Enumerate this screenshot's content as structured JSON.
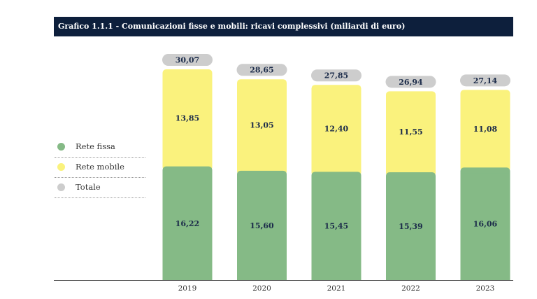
{
  "title": "Grafico 1.1.1 - Comunicazioni fisse e mobili: ricavi complessivi (miliardi di euro)",
  "colors": {
    "rete_fissa": "#85ba86",
    "rete_mobile": "#faf27d",
    "totale": "#cdcdcd",
    "title_bg": "#0d1f3c"
  },
  "legend": [
    {
      "label": "Rete fissa",
      "color": "#85ba86"
    },
    {
      "label": "Rete mobile",
      "color": "#faf27d"
    },
    {
      "label": "Totale",
      "color": "#cdcdcd"
    }
  ],
  "chart_data": {
    "type": "bar",
    "stacked": true,
    "categories": [
      "2019",
      "2020",
      "2021",
      "2022",
      "2023"
    ],
    "series": [
      {
        "name": "Rete fissa",
        "values": [
          16.22,
          15.6,
          15.45,
          15.39,
          16.06
        ],
        "labels": [
          "16,22",
          "15,60",
          "15,45",
          "15,39",
          "16,06"
        ]
      },
      {
        "name": "Rete mobile",
        "values": [
          13.85,
          13.05,
          12.4,
          11.55,
          11.08
        ],
        "labels": [
          "13,85",
          "13,05",
          "12,40",
          "11,55",
          "11,08"
        ]
      }
    ],
    "totals": {
      "name": "Totale",
      "values": [
        30.07,
        28.65,
        27.85,
        26.94,
        27.14
      ],
      "labels": [
        "30,07",
        "28,65",
        "27,85",
        "26,94",
        "27,14"
      ]
    },
    "ylim": [
      0,
      30.07
    ],
    "grid": false,
    "legend_position": "left"
  }
}
